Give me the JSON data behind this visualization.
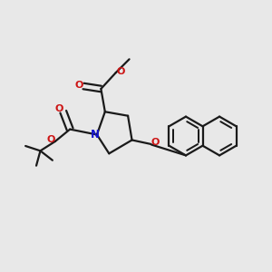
{
  "bg_color": "#e8e8e8",
  "bond_color": "#1a1a1a",
  "n_color": "#1414cc",
  "o_color": "#cc1414",
  "bond_width": 1.6,
  "figsize": [
    3.0,
    3.0
  ],
  "dpi": 100,
  "xlim": [
    0,
    10
  ],
  "ylim": [
    0,
    10
  ]
}
